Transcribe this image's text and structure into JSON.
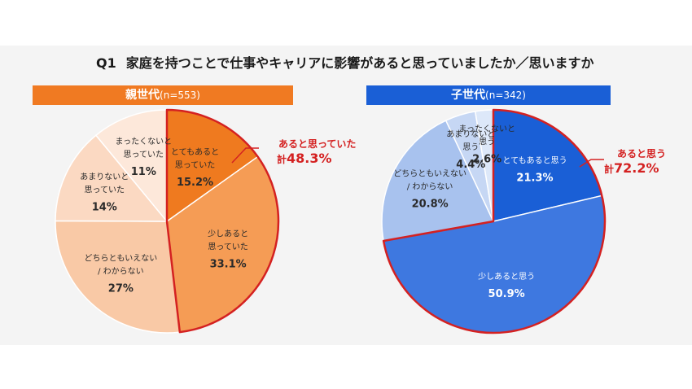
{
  "title": {
    "qno": "Q1",
    "text": "家庭を持つことで仕事やキャリアに影響があると思っていましたか／思いますか"
  },
  "callout_prefix": "計",
  "chart_data": [
    {
      "type": "pie",
      "group": "親世代",
      "n": "(n=553)",
      "header_color": "#f07a22",
      "highlight_color": "#d42121",
      "callout": {
        "label": "あると思っていた",
        "total": "48.3%"
      },
      "slices": [
        {
          "label": [
            "とてもあると",
            "思っていた"
          ],
          "value": 15.2,
          "display": "15.2%",
          "color": "#ef7a1f",
          "highlight": true
        },
        {
          "label": [
            "少しあると",
            "思っていた"
          ],
          "value": 33.1,
          "display": "33.1%",
          "color": "#f59c55",
          "highlight": true
        },
        {
          "label": [
            "どちらともいえない",
            "/ わからない"
          ],
          "value": 27,
          "display": "27%",
          "color": "#f9c9a6",
          "highlight": false
        },
        {
          "label": [
            "あまりないと",
            "思っていた"
          ],
          "value": 14,
          "display": "14%",
          "color": "#fbd9c2",
          "highlight": false
        },
        {
          "label": [
            "まったくないと",
            "思っていた"
          ],
          "value": 11,
          "display": "11%",
          "color": "#fde8da",
          "highlight": false
        }
      ]
    },
    {
      "type": "pie",
      "group": "子世代",
      "n": "(n=342)",
      "header_color": "#1a5fd6",
      "highlight_color": "#d42121",
      "callout": {
        "label": "あると思う",
        "total": "72.2%"
      },
      "slices": [
        {
          "label": [
            "とてもあると思う"
          ],
          "value": 21.3,
          "display": "21.3%",
          "color": "#1a5fd6",
          "highlight": true
        },
        {
          "label": [
            "少しあると思う"
          ],
          "value": 50.9,
          "display": "50.9%",
          "color": "#3e78e0",
          "highlight": true
        },
        {
          "label": [
            "どちらともいえない",
            "/ わからない"
          ],
          "value": 20.8,
          "display": "20.8%",
          "color": "#a8c2ee",
          "highlight": false
        },
        {
          "label": [
            "あまりないと",
            "思う"
          ],
          "value": 4.4,
          "display": "4.4%",
          "color": "#c6d7f4",
          "highlight": false
        },
        {
          "label": [
            "まったくないと",
            "思う"
          ],
          "value": 2.6,
          "display": "2.6%",
          "color": "#dde8f9",
          "highlight": false
        }
      ]
    }
  ]
}
